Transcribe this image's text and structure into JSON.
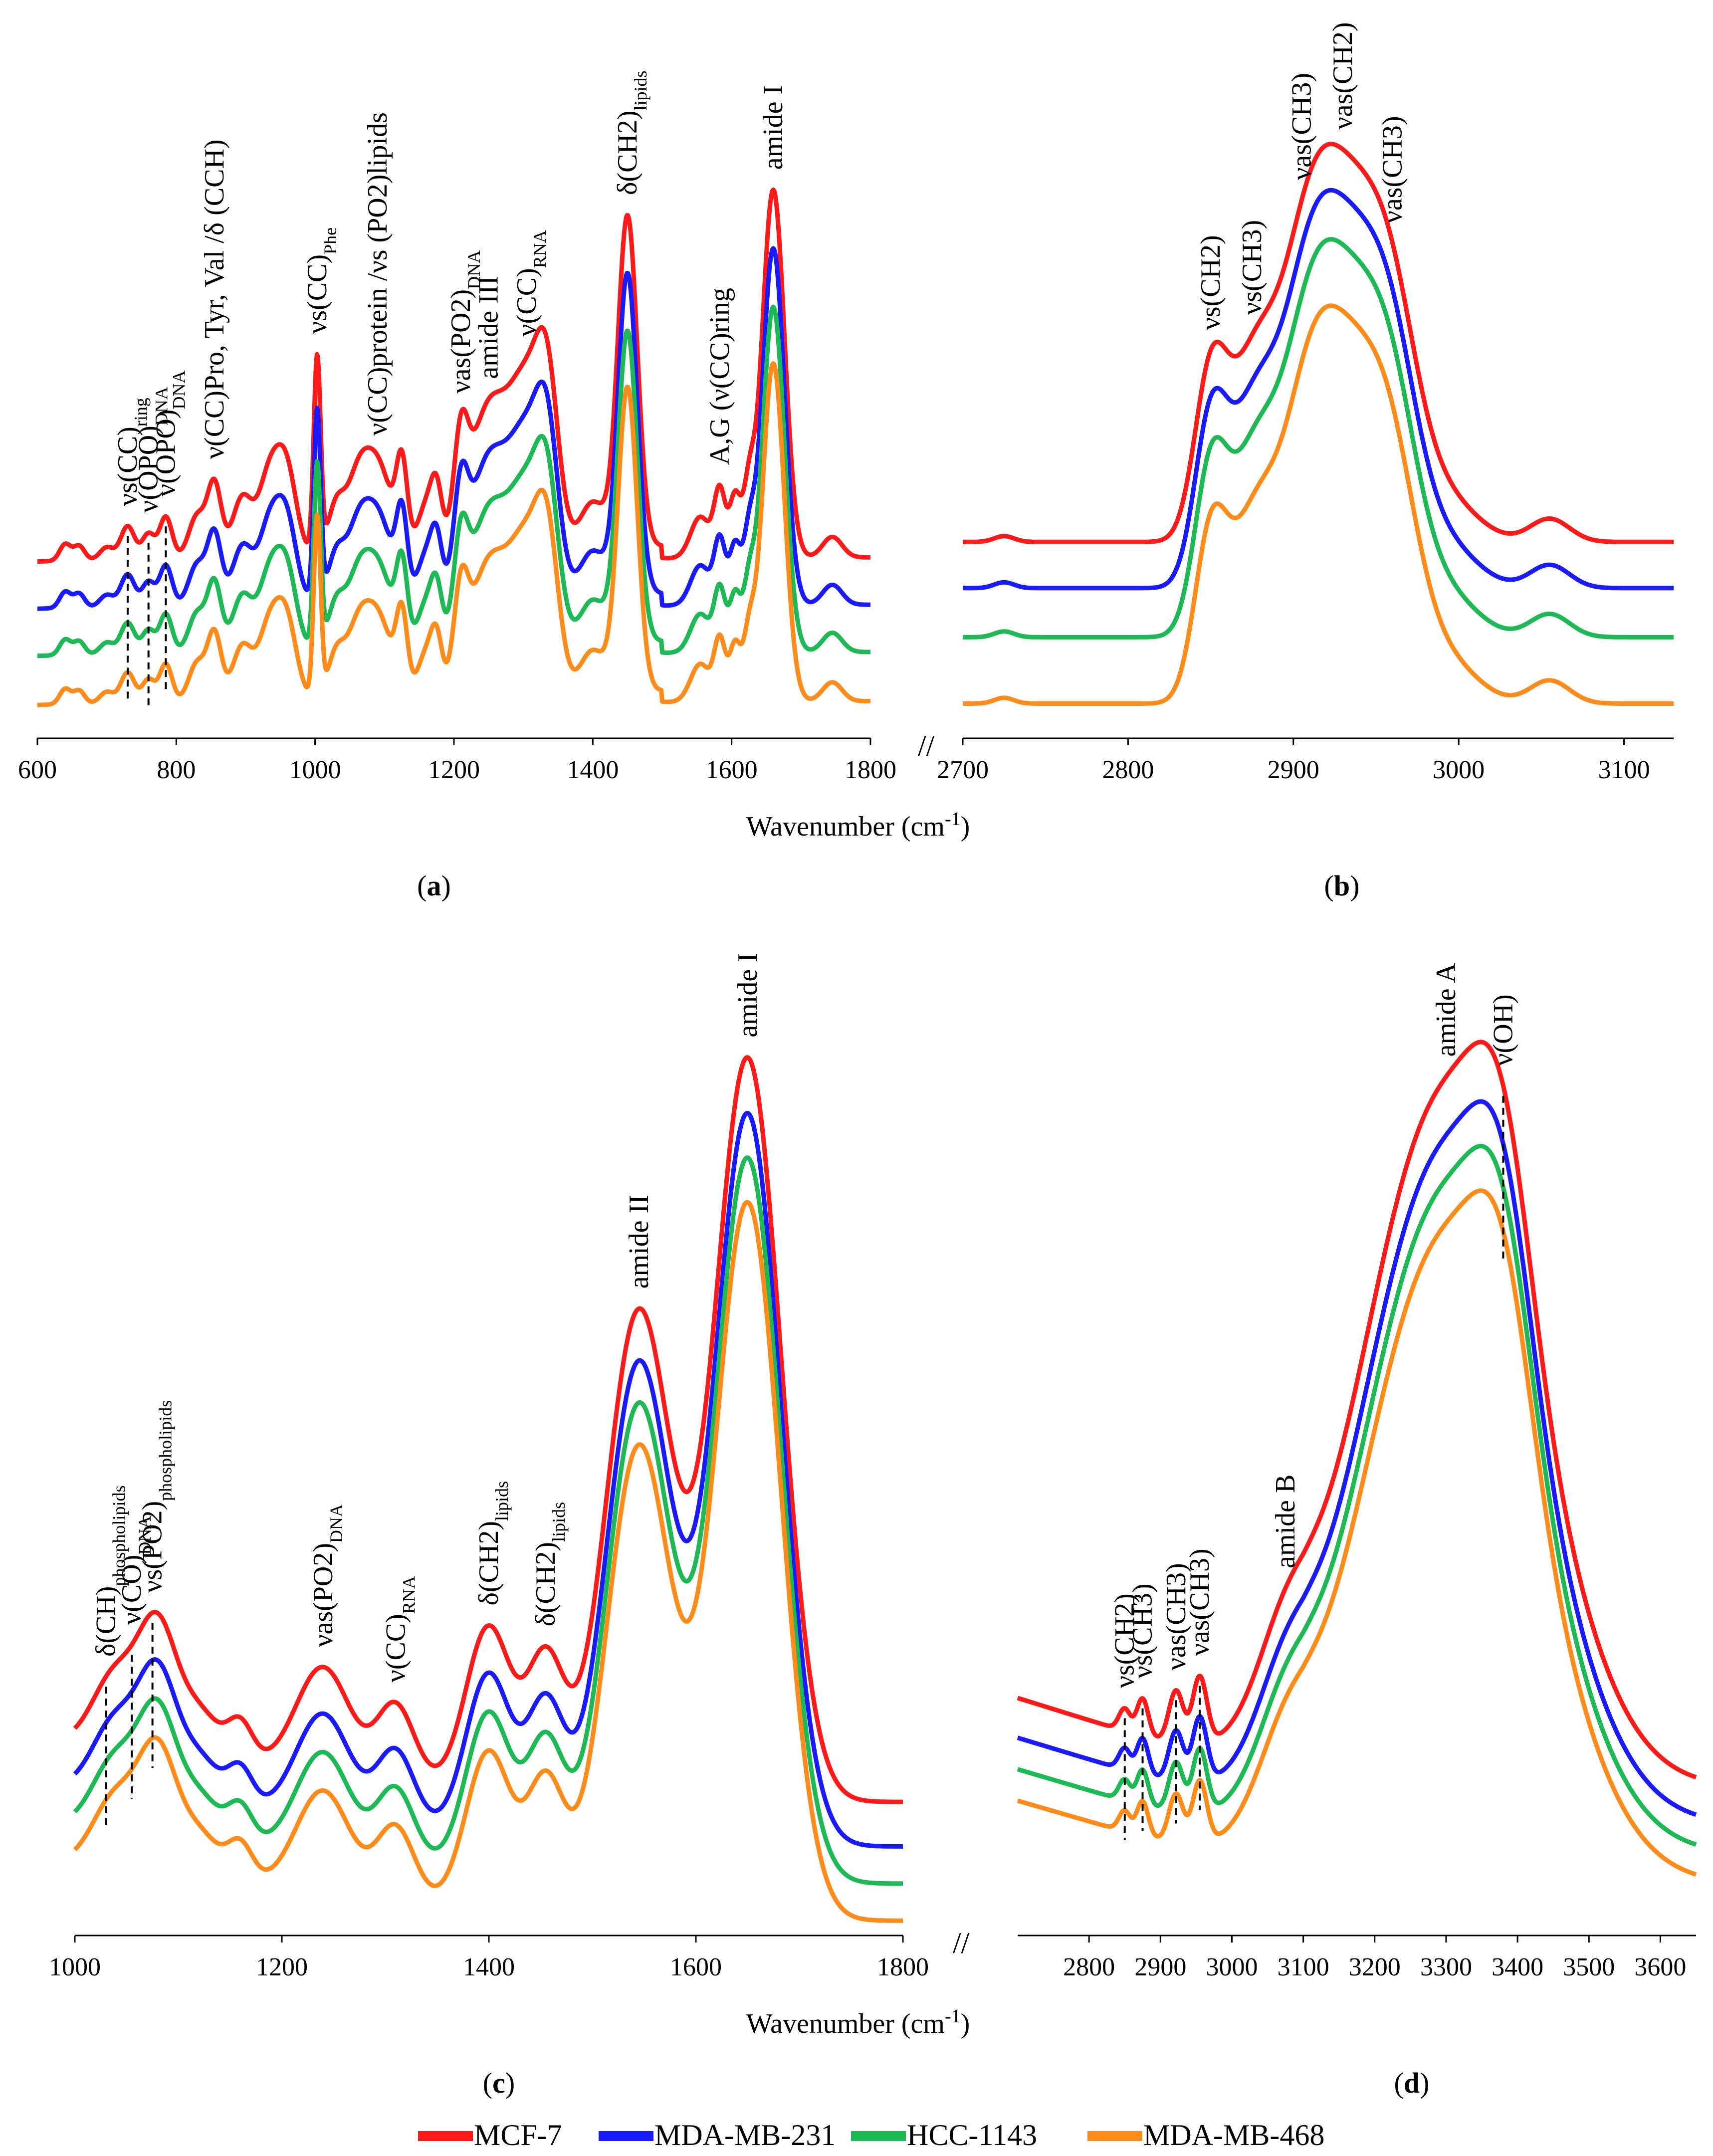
{
  "figure": {
    "colors": {
      "MCF-7": "#ff1a1a",
      "MDA-MB-231": "#1a1aff",
      "HCC-1143": "#1db954",
      "MDA-MB-468": "#ff8c1a"
    }
  },
  "chart_data": [
    {
      "panel": "a",
      "type": "line",
      "xlabel": "Wavenumber (cm-1)",
      "xlim": [
        600,
        1800
      ],
      "xticks": [
        600,
        800,
        1000,
        1200,
        1400,
        1600,
        1800
      ],
      "y_visible": false,
      "series": [
        {
          "name": "MCF-7",
          "color": "#ff1a1a",
          "offset": 0.72,
          "scale": 0.98
        },
        {
          "name": "MDA-MB-231",
          "color": "#1a1aff",
          "offset": 0.5,
          "scale": 0.95
        },
        {
          "name": "HCC-1143",
          "color": "#1db954",
          "offset": 0.28,
          "scale": 0.92
        },
        {
          "name": "MDA-MB-468",
          "color": "#ff8c1a",
          "offset": 0.05,
          "scale": 0.9
        }
      ],
      "peaks": [
        [
          640,
          0.08,
          8
        ],
        [
          660,
          0.07,
          8
        ],
        [
          700,
          0.06,
          10
        ],
        [
          730,
          0.16,
          10
        ],
        [
          760,
          0.12,
          9
        ],
        [
          785,
          0.2,
          9
        ],
        [
          830,
          0.2,
          12
        ],
        [
          855,
          0.35,
          10
        ],
        [
          895,
          0.28,
          14
        ],
        [
          935,
          0.4,
          16
        ],
        [
          960,
          0.36,
          14
        ],
        [
          1003,
          0.95,
          5
        ],
        [
          1030,
          0.22,
          12
        ],
        [
          1060,
          0.3,
          16
        ],
        [
          1090,
          0.42,
          20
        ],
        [
          1125,
          0.4,
          8
        ],
        [
          1160,
          0.22,
          12
        ],
        [
          1175,
          0.25,
          8
        ],
        [
          1210,
          0.42,
          10
        ],
        [
          1250,
          0.68,
          28
        ],
        [
          1305,
          0.72,
          24
        ],
        [
          1335,
          0.66,
          16
        ],
        [
          1400,
          0.22,
          18
        ],
        [
          1450,
          1.6,
          14
        ],
        [
          1555,
          0.2,
          14
        ],
        [
          1583,
          0.32,
          8
        ],
        [
          1605,
          0.3,
          8
        ],
        [
          1625,
          0.3,
          8
        ],
        [
          1660,
          1.78,
          16
        ],
        [
          1745,
          0.1,
          14
        ]
      ],
      "annotations": [
        {
          "main": "νs(CC)",
          "sub": "ring",
          "x": 730,
          "dashed": true
        },
        {
          "main": "ν(OPO)",
          "sub": "DNA",
          "x": 760,
          "dashed": true
        },
        {
          "main": "ν(OPO)",
          "sub": "DNA",
          "x": 785,
          "dashed": true
        },
        {
          "main": "ν(CC)Pro, Tyr, Val /δ (CCH)",
          "sub": "",
          "x": 855,
          "dashed": false
        },
        {
          "main": "νs(CC)",
          "sub": "Phe",
          "x": 1003,
          "dashed": false
        },
        {
          "main": "ν(CC)protein /νs (PO2)lipids",
          "sub": "",
          "x": 1090,
          "dashed": false
        },
        {
          "main": "νas(PO2)",
          "sub": "DNA",
          "x": 1210,
          "dashed": false
        },
        {
          "main": "amide III",
          "sub": "",
          "x": 1250,
          "dashed": false
        },
        {
          "main": "ν(CC)",
          "sub": "RNA",
          "x": 1305,
          "dashed": false
        },
        {
          "main": "δ(CH2)",
          "sub": "lipids",
          "x": 1450,
          "dashed": false
        },
        {
          "main": "A,G (ν(CC)ring",
          "sub": "",
          "x": 1583,
          "dashed": false
        },
        {
          "main": "amide I",
          "sub": "",
          "x": 1660,
          "dashed": false
        }
      ]
    },
    {
      "panel": "b",
      "type": "line",
      "xlabel": "Wavenumber (cm-1)",
      "xlim": [
        2700,
        3130
      ],
      "xticks": [
        2700,
        2800,
        2900,
        3000,
        3100
      ],
      "y_visible": false,
      "series": [
        {
          "name": "MCF-7",
          "color": "#ff1a1a",
          "offset": 0.68,
          "scale": 1.0
        },
        {
          "name": "MDA-MB-231",
          "color": "#1a1aff",
          "offset": 0.52,
          "scale": 1.0
        },
        {
          "name": "HCC-1143",
          "color": "#1db954",
          "offset": 0.35,
          "scale": 1.0
        },
        {
          "name": "MDA-MB-468",
          "color": "#ff8c1a",
          "offset": 0.12,
          "scale": 1.0
        }
      ],
      "peaks": [
        [
          2725,
          0.02,
          6
        ],
        [
          2850,
          0.55,
          10
        ],
        [
          2875,
          0.55,
          14
        ],
        [
          2905,
          0.55,
          16
        ],
        [
          2930,
          1.1,
          22
        ],
        [
          2960,
          0.55,
          16
        ],
        [
          2990,
          0.15,
          20
        ],
        [
          3055,
          0.08,
          12
        ]
      ],
      "annotations": [
        {
          "main": "νs(CH2)",
          "sub": "",
          "x": 2850,
          "dashed": false
        },
        {
          "main": "νs(CH3)",
          "sub": "",
          "x": 2875,
          "dashed": false
        },
        {
          "main": "νas(CH3)",
          "sub": "",
          "x": 2905,
          "dashed": false
        },
        {
          "main": "νas(CH2)",
          "sub": "",
          "x": 2930,
          "dashed": false
        },
        {
          "main": "νas(CH3)",
          "sub": "",
          "x": 2960,
          "dashed": false
        }
      ]
    },
    {
      "panel": "c",
      "type": "line",
      "xlabel": "Wavenumber (cm-1)",
      "xlim": [
        1000,
        1800
      ],
      "xticks": [
        1000,
        1200,
        1400,
        1600,
        1800
      ],
      "y_visible": false,
      "series": [
        {
          "name": "MCF-7",
          "color": "#ff1a1a",
          "offset": 0.18,
          "scale": 1.0
        },
        {
          "name": "MDA-MB-231",
          "color": "#1a1aff",
          "offset": 0.12,
          "scale": 0.985
        },
        {
          "name": "HCC-1143",
          "color": "#1db954",
          "offset": 0.07,
          "scale": 0.975
        },
        {
          "name": "MDA-MB-468",
          "color": "#ff8c1a",
          "offset": 0.02,
          "scale": 0.965
        }
      ],
      "peaks": [
        [
          1040,
          0.1,
          22
        ],
        [
          1080,
          0.16,
          18
        ],
        [
          1120,
          0.06,
          20
        ],
        [
          1160,
          0.05,
          12
        ],
        [
          1240,
          0.14,
          26
        ],
        [
          1310,
          0.1,
          18
        ],
        [
          1400,
          0.22,
          22
        ],
        [
          1455,
          0.18,
          18
        ],
        [
          1545,
          0.66,
          32
        ],
        [
          1650,
          1.0,
          32
        ]
      ],
      "annotations": [
        {
          "main": "δ(CH)",
          "sub": "phospholipids",
          "x": 1030,
          "dashed": true
        },
        {
          "main": "ν(CO)",
          "sub": "DNA",
          "x": 1055,
          "dashed": true
        },
        {
          "main": "νs(PO2)",
          "sub": "phospholipids",
          "x": 1075,
          "dashed": true
        },
        {
          "main": "νas(PO2)",
          "sub": "DNA",
          "x": 1240,
          "dashed": false
        },
        {
          "main": "ν(CC)",
          "sub": "RNA",
          "x": 1310,
          "dashed": false
        },
        {
          "main": "δ(CH2)",
          "sub": "lipids",
          "x": 1400,
          "dashed": false
        },
        {
          "main": "δ(CH2)",
          "sub": "lipids",
          "x": 1455,
          "dashed": false
        },
        {
          "main": "amide II",
          "sub": "",
          "x": 1545,
          "dashed": false
        },
        {
          "main": "amide I",
          "sub": "",
          "x": 1650,
          "dashed": false
        }
      ]
    },
    {
      "panel": "d",
      "type": "line",
      "xlabel": "Wavenumber (cm-1)",
      "xlim": [
        2700,
        3650
      ],
      "xticks": [
        2800,
        2900,
        3000,
        3100,
        3200,
        3300,
        3400,
        3500,
        3600
      ],
      "y_visible": false,
      "series": [
        {
          "name": "MCF-7",
          "color": "#ff1a1a",
          "offset": 0.2,
          "scale": 1.0
        },
        {
          "name": "MDA-MB-231",
          "color": "#1a1aff",
          "offset": 0.15,
          "scale": 0.97
        },
        {
          "name": "HCC-1143",
          "color": "#1db954",
          "offset": 0.11,
          "scale": 0.95
        },
        {
          "name": "MDA-MB-468",
          "color": "#ff8c1a",
          "offset": 0.07,
          "scale": 0.93
        }
      ],
      "peaks": [
        [
          2850,
          0.03,
          8
        ],
        [
          2875,
          0.05,
          8
        ],
        [
          2922,
          0.07,
          10
        ],
        [
          2955,
          0.09,
          10
        ],
        [
          3075,
          0.1,
          40
        ],
        [
          3300,
          0.93,
          120
        ],
        [
          3380,
          0.2,
          40
        ]
      ],
      "annotations": [
        {
          "main": "νs(CH2)",
          "sub": "",
          "x": 2850,
          "dashed": true
        },
        {
          "main": "νs(CH3)",
          "sub": "",
          "x": 2875,
          "dashed": true
        },
        {
          "main": "νas(CH3)",
          "sub": "",
          "x": 2922,
          "dashed": true
        },
        {
          "main": "νas(CH3)",
          "sub": "",
          "x": 2955,
          "dashed": true
        },
        {
          "main": "amide B",
          "sub": "",
          "x": 3075,
          "dashed": false
        },
        {
          "main": "amide A",
          "sub": "",
          "x": 3300,
          "dashed": false
        },
        {
          "main": "ν(OH)",
          "sub": "",
          "x": 3380,
          "dashed": true
        }
      ]
    }
  ],
  "labels": {
    "xlabel_top": "Wavenumber (cm-1)",
    "xlabel_bottom": "Wavenumber (cm-1)",
    "panel_a": "(a)",
    "panel_b": "(b)",
    "panel_c": "(c)",
    "panel_d": "(d)"
  },
  "legend": [
    {
      "name": "MCF-7",
      "color": "#ff1a1a"
    },
    {
      "name": "MDA-MB-231",
      "color": "#1a1aff"
    },
    {
      "name": "HCC-1143",
      "color": "#1db954"
    },
    {
      "name": "MDA-MB-468",
      "color": "#ff8c1a"
    }
  ]
}
